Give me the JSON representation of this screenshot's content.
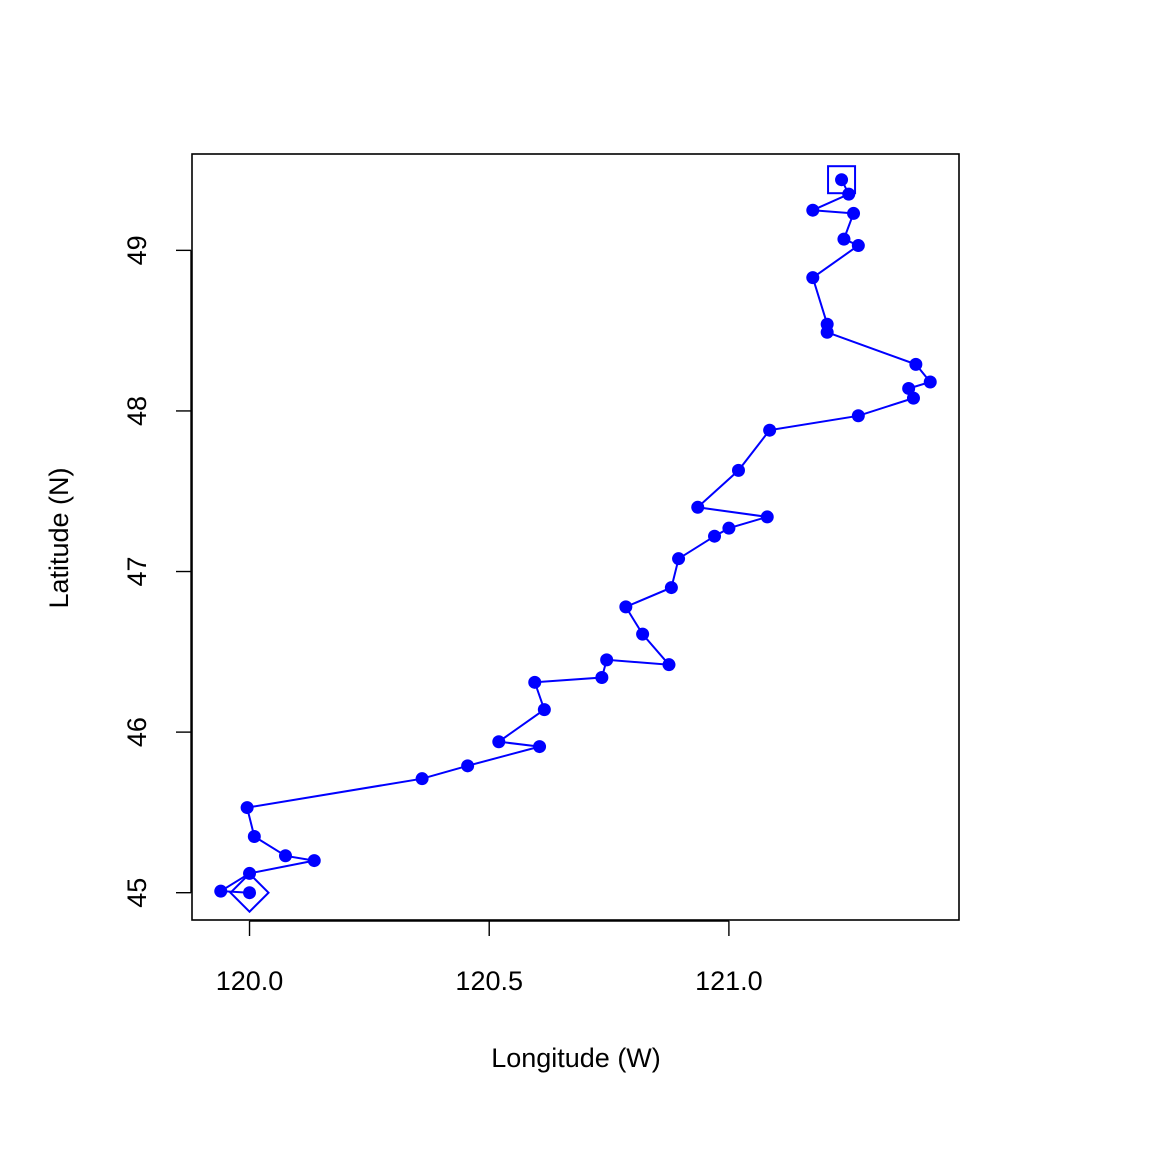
{
  "chart_data": {
    "type": "scatter",
    "title": "",
    "xlabel": "Longitude (W)",
    "ylabel": "Latitude (N)",
    "xlim": [
      119.88,
      121.48
    ],
    "ylim": [
      44.83,
      49.6
    ],
    "xticks": [
      "120.0",
      "120.5",
      "121.0"
    ],
    "yticks": [
      "45",
      "46",
      "47",
      "48",
      "49"
    ],
    "grid": false,
    "legend": "none",
    "color": "#0000ff",
    "series": [
      {
        "marker": "filled-circle",
        "connected": true,
        "x": [
          120.0,
          119.94,
          120.0,
          120.135,
          120.075,
          120.01,
          119.995,
          120.36,
          120.455,
          120.605,
          120.52,
          120.615,
          120.595,
          120.735,
          120.745,
          120.875,
          120.82,
          120.785,
          120.88,
          120.895,
          120.97,
          121.0,
          121.08,
          120.935,
          121.02,
          121.085,
          121.27,
          121.385,
          121.375,
          121.42,
          121.39,
          121.205,
          121.205,
          121.175,
          121.27,
          121.24,
          121.26,
          121.175,
          121.25,
          121.235
        ],
        "y": [
          45.0,
          45.01,
          45.12,
          45.2,
          45.23,
          45.35,
          45.53,
          45.71,
          45.79,
          45.91,
          45.94,
          46.14,
          46.31,
          46.34,
          46.45,
          46.42,
          46.61,
          46.78,
          46.9,
          47.08,
          47.22,
          47.27,
          47.34,
          47.4,
          47.63,
          47.88,
          47.97,
          48.08,
          48.14,
          48.18,
          48.29,
          48.49,
          48.54,
          48.83,
          49.03,
          49.07,
          49.23,
          49.25,
          49.35,
          49.44
        ]
      }
    ],
    "annotations": [
      {
        "shape": "diamond",
        "x": 120.0,
        "y": 45.0,
        "meaning": "start"
      },
      {
        "shape": "square",
        "x": 121.235,
        "y": 49.44,
        "meaning": "end"
      }
    ]
  }
}
